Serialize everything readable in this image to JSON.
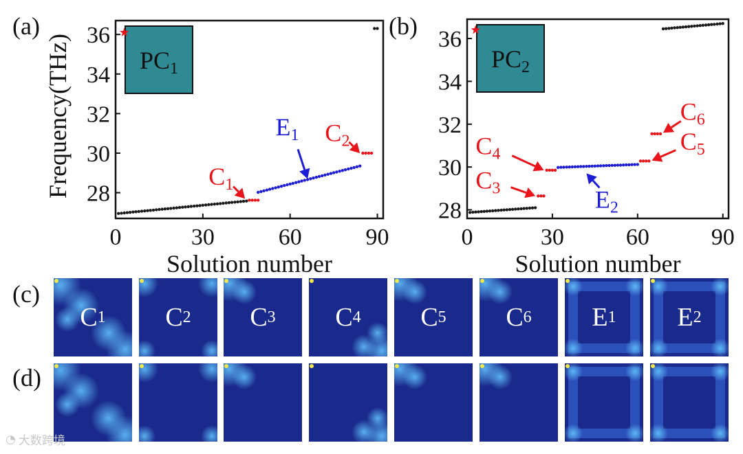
{
  "panels": {
    "a": "(a)",
    "b": "(b)",
    "c": "(c)",
    "d": "(d)"
  },
  "watermark": "大数跨境",
  "colors": {
    "black_series": "#1a1a1a",
    "red_series": "#e8141a",
    "blue_series": "#1d1dd6",
    "box_fill": "#2f8a93",
    "star": "#e8141a",
    "map_bg": "#1a2a8c"
  },
  "chart_data": [
    {
      "panel": "a",
      "type": "scatter",
      "title": "",
      "xlabel": "Solution number",
      "ylabel": "Frequency(THz)",
      "xlim": [
        0,
        92
      ],
      "ylim": [
        26.7,
        36.7
      ],
      "xticks": [
        0,
        30,
        60,
        90
      ],
      "yticks": [
        28,
        30,
        32,
        34,
        36
      ],
      "box_label": {
        "main": "PC",
        "sub": "1"
      },
      "star": {
        "x": 3,
        "y": 36.1
      },
      "series": [
        {
          "name": "bulk-low",
          "color": "black",
          "x_start": 1,
          "x_end": 45,
          "y_start": 26.95,
          "y_end": 27.58
        },
        {
          "name": "C1",
          "color": "red",
          "x_start": 46,
          "x_end": 49,
          "y_start": 27.62,
          "y_end": 27.62
        },
        {
          "name": "E1",
          "color": "blue",
          "x_start": 49,
          "x_end": 84,
          "y_start": 28.02,
          "y_end": 29.35
        },
        {
          "name": "C2",
          "color": "red",
          "x_start": 85,
          "x_end": 88,
          "y_start": 30.0,
          "y_end": 30.0
        },
        {
          "name": "bulk-high",
          "color": "black",
          "x_start": 89,
          "x_end": 90,
          "y_start": 36.3,
          "y_end": 36.3
        }
      ],
      "annotations": [
        {
          "main": "C",
          "sub": "1",
          "color": "red",
          "tx": 32,
          "ty": 28.4,
          "ax": 44.5,
          "ay": 27.7
        },
        {
          "main": "E",
          "sub": "1",
          "color": "blue",
          "tx": 55,
          "ty": 30.9,
          "ax": 66,
          "ay": 28.7
        },
        {
          "main": "C",
          "sub": "2",
          "color": "red",
          "tx": 72,
          "ty": 30.6,
          "ax": 84,
          "ay": 30.0
        }
      ]
    },
    {
      "panel": "b",
      "type": "scatter",
      "title": "",
      "xlabel": "Solution number",
      "ylabel": "",
      "xlim": [
        0,
        92
      ],
      "ylim": [
        27.6,
        36.9
      ],
      "xticks": [
        0,
        30,
        60,
        90
      ],
      "yticks": [
        28,
        30,
        32,
        34,
        36
      ],
      "box_label": {
        "main": "PC",
        "sub": "2"
      },
      "star": {
        "x": 3,
        "y": 36.4
      },
      "series": [
        {
          "name": "bulk-low",
          "color": "black",
          "x_start": 1,
          "x_end": 24,
          "y_start": 27.88,
          "y_end": 28.1
        },
        {
          "name": "C3",
          "color": "red",
          "x_start": 25,
          "x_end": 27,
          "y_start": 28.65,
          "y_end": 28.65
        },
        {
          "name": "C4",
          "color": "red",
          "x_start": 28,
          "x_end": 31,
          "y_start": 29.85,
          "y_end": 29.85
        },
        {
          "name": "E2",
          "color": "blue",
          "x_start": 32,
          "x_end": 60,
          "y_start": 29.98,
          "y_end": 30.12
        },
        {
          "name": "C5",
          "color": "red",
          "x_start": 61,
          "x_end": 64,
          "y_start": 30.28,
          "y_end": 30.28
        },
        {
          "name": "C6",
          "color": "red",
          "x_start": 65,
          "x_end": 68,
          "y_start": 31.55,
          "y_end": 31.55
        },
        {
          "name": "bulk-high",
          "color": "black",
          "x_start": 69,
          "x_end": 90,
          "y_start": 36.45,
          "y_end": 36.7
        }
      ],
      "annotations": [
        {
          "main": "C",
          "sub": "4",
          "color": "red",
          "tx": 3,
          "ty": 30.6,
          "ax": 27,
          "ay": 29.85
        },
        {
          "main": "C",
          "sub": "3",
          "color": "red",
          "tx": 3,
          "ty": 29.0,
          "ax": 24,
          "ay": 28.65
        },
        {
          "main": "E",
          "sub": "2",
          "color": "blue",
          "tx": 45,
          "ty": 28.1,
          "ax": 42,
          "ay": 29.7
        },
        {
          "main": "C",
          "sub": "5",
          "color": "red",
          "tx": 75,
          "ty": 30.8,
          "ax": 65,
          "ay": 30.3
        },
        {
          "main": "C",
          "sub": "6",
          "color": "red",
          "tx": 75,
          "ty": 32.2,
          "ax": 69,
          "ay": 31.6
        }
      ]
    }
  ],
  "field_maps": {
    "row_c": [
      {
        "main": "C",
        "sub": "1",
        "pattern": "diag-edge"
      },
      {
        "main": "C",
        "sub": "2",
        "pattern": "corners"
      },
      {
        "main": "C",
        "sub": "3",
        "pattern": "top-left"
      },
      {
        "main": "C",
        "sub": "4",
        "pattern": "bottom-right"
      },
      {
        "main": "C",
        "sub": "5",
        "pattern": "top-left"
      },
      {
        "main": "C",
        "sub": "6",
        "pattern": "top-left"
      },
      {
        "main": "E",
        "sub": "1",
        "pattern": "ring"
      },
      {
        "main": "E",
        "sub": "2",
        "pattern": "ring"
      }
    ],
    "row_d": [
      {
        "pattern": "diag-edge"
      },
      {
        "pattern": "corners"
      },
      {
        "pattern": "top-left"
      },
      {
        "pattern": "bottom-right"
      },
      {
        "pattern": "top-left"
      },
      {
        "pattern": "top-left"
      },
      {
        "pattern": "ring"
      },
      {
        "pattern": "ring"
      }
    ]
  }
}
